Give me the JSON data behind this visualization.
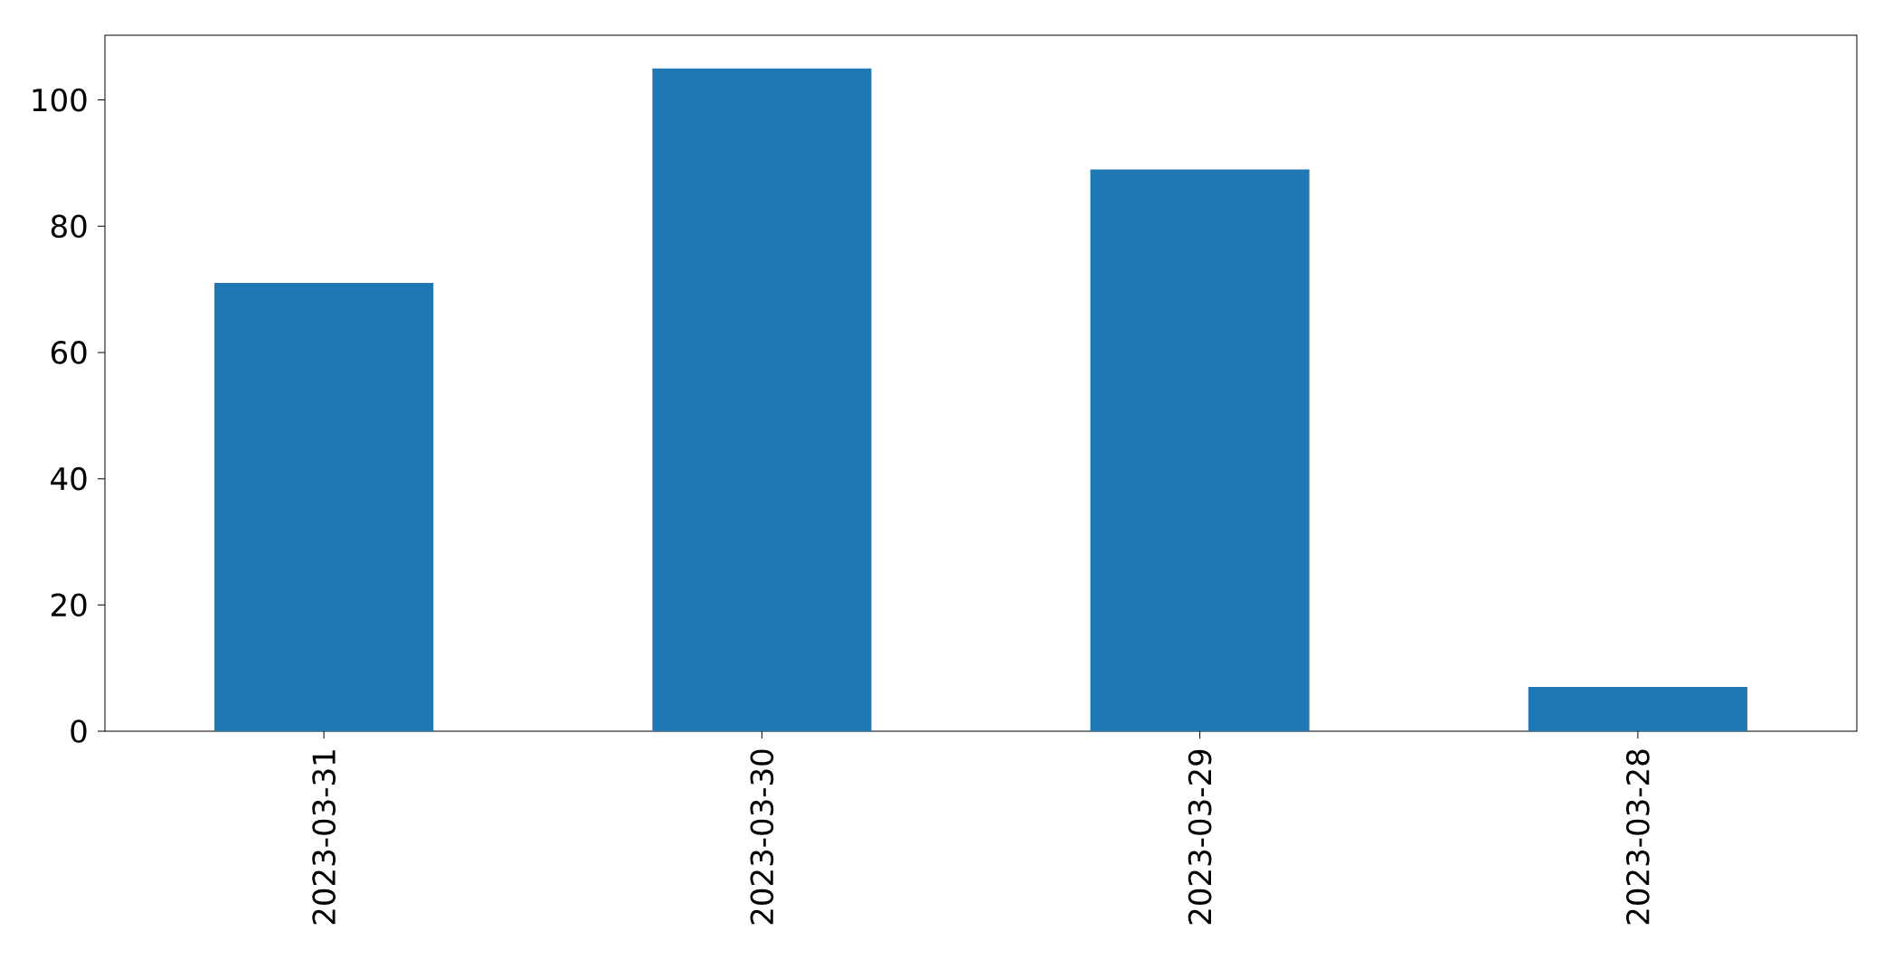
{
  "chart_data": {
    "type": "bar",
    "categories": [
      "2023-03-31",
      "2023-03-30",
      "2023-03-29",
      "2023-03-28"
    ],
    "values": [
      71,
      105,
      89,
      7
    ],
    "color": "#1f77b4",
    "ylim": [
      0,
      110.25
    ],
    "yticks": [
      0,
      20,
      40,
      60,
      80,
      100
    ],
    "grid": false
  }
}
